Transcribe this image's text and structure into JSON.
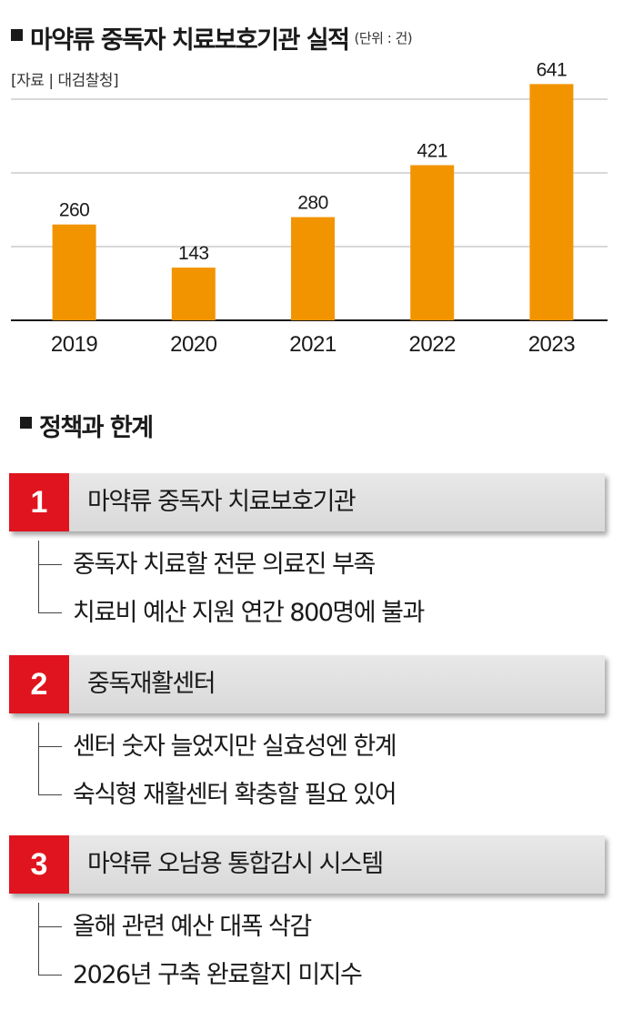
{
  "header": {
    "title": "마약류 중독자 치료보호기관 실적",
    "unit": "(단위 : 건)",
    "source": "[자료 | 대검찰청]"
  },
  "chart_data": {
    "type": "bar",
    "categories": [
      "2019",
      "2020",
      "2021",
      "2022",
      "2023"
    ],
    "values": [
      260,
      143,
      280,
      421,
      641
    ],
    "title": "마약류 중독자 치료보호기관 실적",
    "unit": "(단위 : 건)",
    "xlabel": "",
    "ylabel": "",
    "ylim": [
      0,
      800
    ],
    "grid": true,
    "bar_color": "#f29400",
    "legend": "none"
  },
  "policy_section": {
    "title": "정책과 한계",
    "items": [
      {
        "number": "1",
        "title": "마약류 중독자 치료보호기관",
        "points": [
          "중독자 치료할 전문 의료진 부족",
          "치료비 예산 지원 연간 800명에 불과"
        ]
      },
      {
        "number": "2",
        "title": "중독재활센터",
        "points": [
          "센터 숫자 늘었지만 실효성엔 한계",
          "숙식형 재활센터 확충할 필요 있어"
        ]
      },
      {
        "number": "3",
        "title": "마약류 오남용 통합감시 시스템",
        "points": [
          "올해 관련 예산 대폭 삭감",
          "2026년 구축 완료할지 미지수"
        ]
      }
    ]
  },
  "colors": {
    "bar": "#f29400",
    "number_box": "#e0141e",
    "grid": "#b0b0b0"
  }
}
